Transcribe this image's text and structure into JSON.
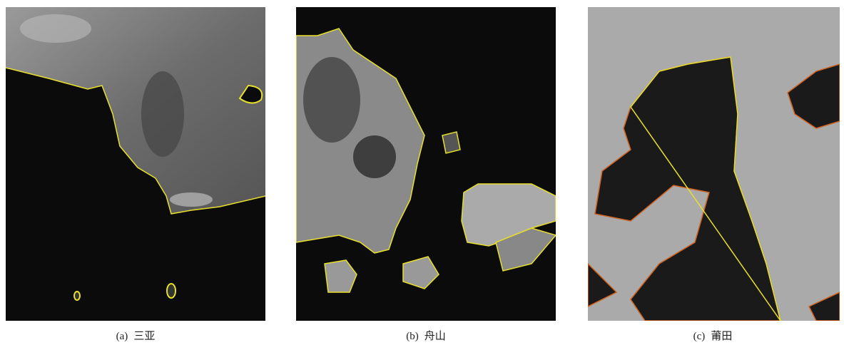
{
  "figure": {
    "panels": [
      {
        "label": "(a)",
        "name": "三亚"
      },
      {
        "label": "(b)",
        "name": "舟山"
      },
      {
        "label": "(c)",
        "name": "莆田"
      }
    ]
  }
}
